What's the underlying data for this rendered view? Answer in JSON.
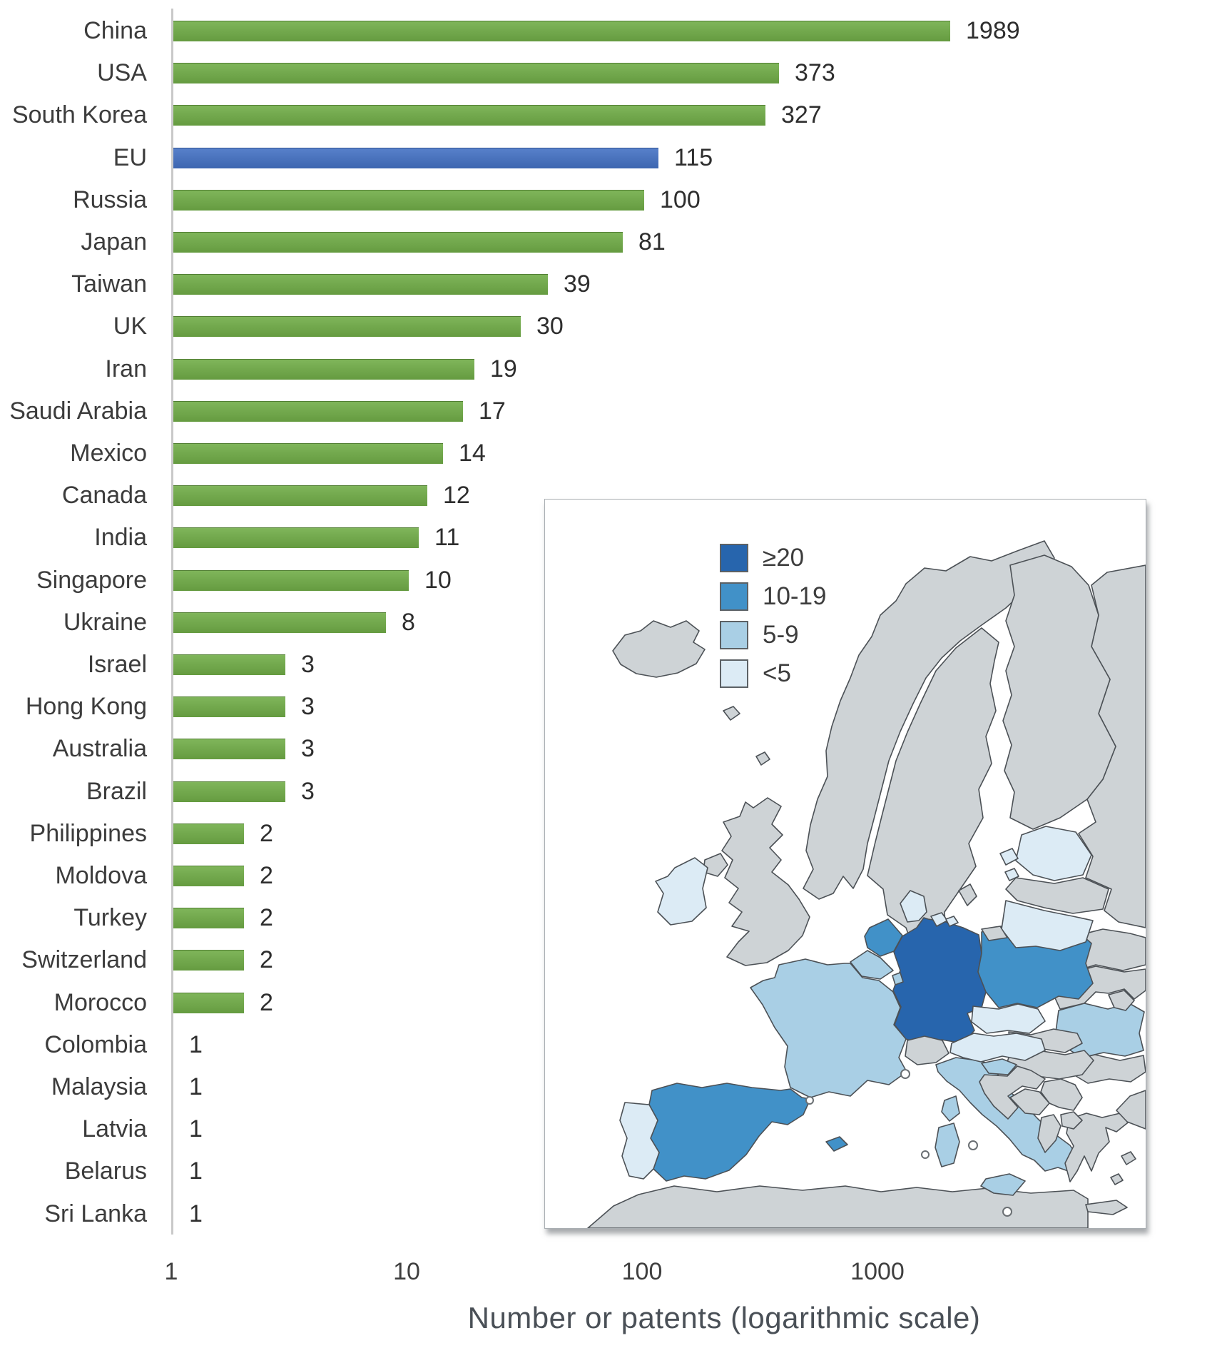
{
  "chart_data": {
    "type": "bar",
    "orientation": "horizontal",
    "x_scale": "logarithmic",
    "xlabel": "Number or patents (logarithmic scale)",
    "x_ticks": [
      "1",
      "10",
      "100",
      "1000"
    ],
    "xlim": [
      1,
      2000
    ],
    "categories": [
      "China",
      "USA",
      "South Korea",
      "EU",
      "Russia",
      "Japan",
      "Taiwan",
      "UK",
      "Iran",
      "Saudi Arabia",
      "Mexico",
      "Canada",
      "India",
      "Singapore",
      "Ukraine",
      "Israel",
      "Hong Kong",
      "Australia",
      "Brazil",
      "Philippines",
      "Moldova",
      "Turkey",
      "Switzerland",
      "Morocco",
      "Colombia",
      "Malaysia",
      "Latvia",
      "Belarus",
      "Sri Lanka"
    ],
    "values": [
      1989,
      373,
      327,
      115,
      100,
      81,
      39,
      30,
      19,
      17,
      14,
      12,
      11,
      10,
      8,
      3,
      3,
      3,
      3,
      2,
      2,
      2,
      2,
      2,
      1,
      1,
      1,
      1,
      1
    ],
    "value_labels": [
      "1989",
      "373",
      "327",
      "115",
      "100",
      "81",
      "39",
      "30",
      "19",
      "17",
      "14",
      "12",
      "11",
      "10",
      "8",
      "3",
      "3",
      "3",
      "3",
      "2",
      "2",
      "2",
      "2",
      "2",
      "1",
      "1",
      "1",
      "1",
      "1"
    ],
    "bar_color": "#70ad47",
    "highlight_category": "EU",
    "highlight_color": "#4472c4",
    "grid": false,
    "legend_position": "none"
  },
  "map_inset": {
    "legend": [
      {
        "label": "≥20",
        "color": "#2765ad"
      },
      {
        "label": "10-19",
        "color": "#4191c8"
      },
      {
        "label": "5-9",
        "color": "#a9cfe5"
      },
      {
        "label": "<5",
        "color": "#dcebf5"
      }
    ],
    "no_data_color": "#ced3d6",
    "sea_color": "#ffffff",
    "border_color": "#4c5156",
    "regions": [
      {
        "name": "Germany",
        "level": "≥20"
      },
      {
        "name": "Poland",
        "level": "10-19"
      },
      {
        "name": "Netherlands",
        "level": "10-19"
      },
      {
        "name": "Spain",
        "level": "10-19"
      },
      {
        "name": "France",
        "level": "5-9"
      },
      {
        "name": "Belgium",
        "level": "5-9"
      },
      {
        "name": "Luxembourg",
        "level": "5-9"
      },
      {
        "name": "Italy",
        "level": "5-9"
      },
      {
        "name": "Romania",
        "level": "5-9"
      },
      {
        "name": "Slovenia",
        "level": "5-9"
      },
      {
        "name": "Ireland",
        "level": "<5"
      },
      {
        "name": "Portugal",
        "level": "<5"
      },
      {
        "name": "Denmark",
        "level": "<5"
      },
      {
        "name": "Czechia",
        "level": "<5"
      },
      {
        "name": "Austria",
        "level": "<5"
      },
      {
        "name": "Estonia",
        "level": "<5"
      },
      {
        "name": "Lithuania",
        "level": "<5"
      },
      {
        "name": "Iceland",
        "level": "no-data"
      },
      {
        "name": "Norway",
        "level": "no-data"
      },
      {
        "name": "Sweden",
        "level": "no-data"
      },
      {
        "name": "Finland",
        "level": "no-data"
      },
      {
        "name": "Russia",
        "level": "no-data"
      },
      {
        "name": "United Kingdom",
        "level": "no-data"
      },
      {
        "name": "Switzerland",
        "level": "no-data"
      },
      {
        "name": "Latvia",
        "level": "no-data"
      },
      {
        "name": "Kaliningrad",
        "level": "no-data"
      },
      {
        "name": "Belarus",
        "level": "no-data"
      },
      {
        "name": "Ukraine",
        "level": "no-data"
      },
      {
        "name": "Moldova",
        "level": "no-data"
      },
      {
        "name": "Slovakia",
        "level": "no-data"
      },
      {
        "name": "Hungary",
        "level": "no-data"
      },
      {
        "name": "Croatia",
        "level": "no-data"
      },
      {
        "name": "Bosnia and Herzegovina",
        "level": "no-data"
      },
      {
        "name": "Serbia",
        "level": "no-data"
      },
      {
        "name": "Albania",
        "level": "no-data"
      },
      {
        "name": "North Macedonia",
        "level": "no-data"
      },
      {
        "name": "Greece",
        "level": "no-data"
      },
      {
        "name": "Bulgaria",
        "level": "no-data"
      },
      {
        "name": "Turkey",
        "level": "no-data"
      },
      {
        "name": "North Africa",
        "level": "no-data"
      }
    ]
  }
}
